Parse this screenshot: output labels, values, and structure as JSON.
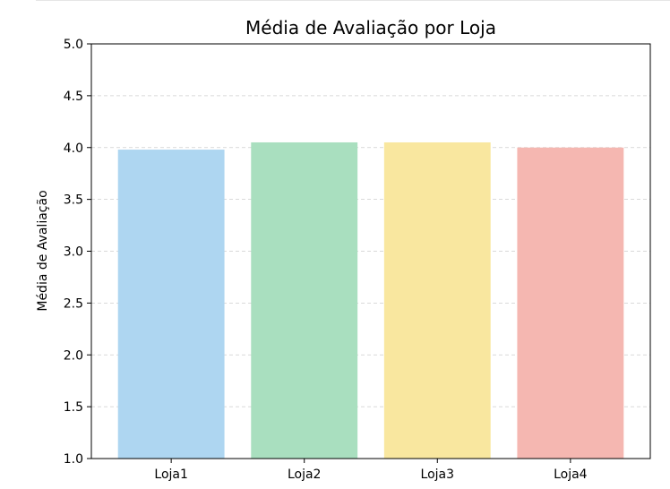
{
  "chart_data": {
    "type": "bar",
    "title": "Média de Avaliação por Loja",
    "xlabel": "",
    "ylabel": "Média de Avaliação",
    "categories": [
      "Loja1",
      "Loja2",
      "Loja3",
      "Loja4"
    ],
    "values": [
      3.98,
      4.05,
      4.05,
      4.0
    ],
    "colors": [
      "#aed6f1",
      "#a9dfbf",
      "#f9e79f",
      "#f5b7b1"
    ],
    "ylim": [
      1.0,
      5.0
    ],
    "yticks": [
      "1.0",
      "1.5",
      "2.0",
      "2.5",
      "3.0",
      "3.5",
      "4.0",
      "4.5",
      "5.0"
    ],
    "grid": "y-dashed",
    "legend": "none"
  }
}
